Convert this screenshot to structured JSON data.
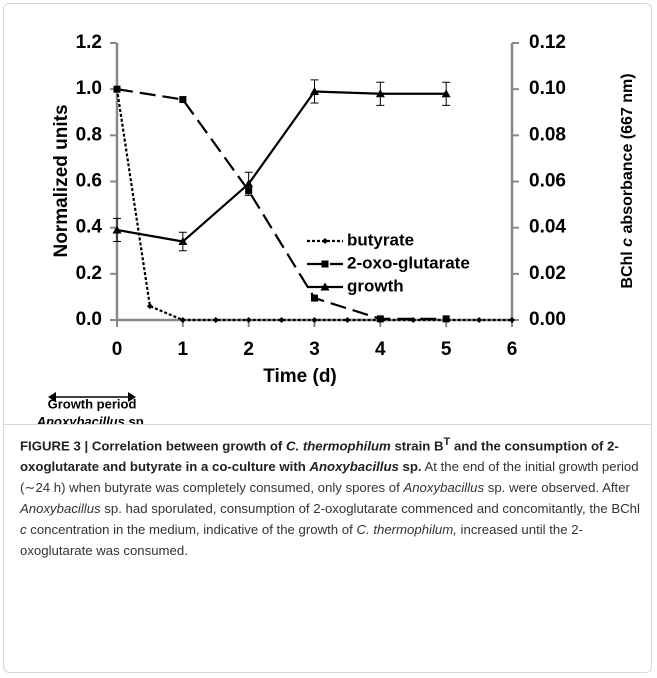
{
  "chart_data": {
    "type": "line",
    "xlabel": "Time (d)",
    "ylabel": "Normalized units",
    "y2label": [
      "BChl ",
      "c",
      " absorbance (667 nm)"
    ],
    "xlim": [
      0,
      6
    ],
    "xticks": [
      0,
      1,
      2,
      3,
      4,
      5,
      6
    ],
    "ylim": [
      0,
      1.2
    ],
    "yticks": [
      {
        "value": 0,
        "label": "0.0"
      },
      0.2,
      0.4,
      0.6,
      0.8,
      {
        "value": 1,
        "label": "1.0"
      },
      1.2
    ],
    "y2lim": [
      0,
      0.12
    ],
    "y2ticks": [
      {
        "value": 0,
        "label": "0.00"
      },
      0.02,
      0.04,
      0.06,
      0.08,
      {
        "value": 0.1,
        "label": "0.10"
      },
      0.12
    ],
    "series": [
      {
        "name": "butyrate",
        "color": "#000000",
        "dash": "3,2",
        "marker": "diamond",
        "x": [
          0,
          0.5,
          1,
          1.5,
          2,
          2.5,
          3,
          3.5,
          4,
          4.5,
          5,
          5.5,
          6
        ],
        "values": [
          1.0,
          0.06,
          0,
          0,
          0,
          0,
          0,
          0,
          0,
          0,
          0,
          0,
          0
        ]
      },
      {
        "name": "2-oxo-glutarate",
        "color": "#000000",
        "dash": "16,7",
        "marker": "square",
        "x": [
          0,
          1,
          2,
          3,
          4,
          5
        ],
        "values": [
          1.0,
          0.955,
          0.56,
          0.095,
          0.005,
          0.005
        ]
      },
      {
        "name": "growth",
        "color": "#000000",
        "dash": "none",
        "marker": "triangle",
        "axis": "y2",
        "x": [
          0,
          1,
          2,
          3,
          4,
          5
        ],
        "values": [
          0.039,
          0.034,
          0.059,
          0.099,
          0.098,
          0.098
        ],
        "errors": [
          0.005,
          0.004,
          0.005,
          0.005,
          0.005,
          0.005
        ]
      }
    ],
    "annotation": [
      "Growth period",
      "Anoxybacillus",
      " sp."
    ]
  },
  "caption": [
    "FIGURE 3 | Correlation between growth of ",
    "C. thermophilum",
    " strain B",
    "T",
    " and the consumption of 2-oxoglutarate and butyrate in a co-culture with ",
    "Anoxybacillus",
    " sp.",
    " At the end of the initial growth period (∼24 h) when butyrate was completely consumed, only spores of ",
    "Anoxybacillus",
    " sp. were observed. After ",
    "Anoxybacillus",
    " sp. had sporulated, consumption of 2-oxoglutarate commenced and concomitantly, the BChl ",
    "c",
    " concentration in the medium, indicative of the growth of ",
    "C. thermophilum,",
    " increased until the 2-oxoglutarate was consumed."
  ]
}
